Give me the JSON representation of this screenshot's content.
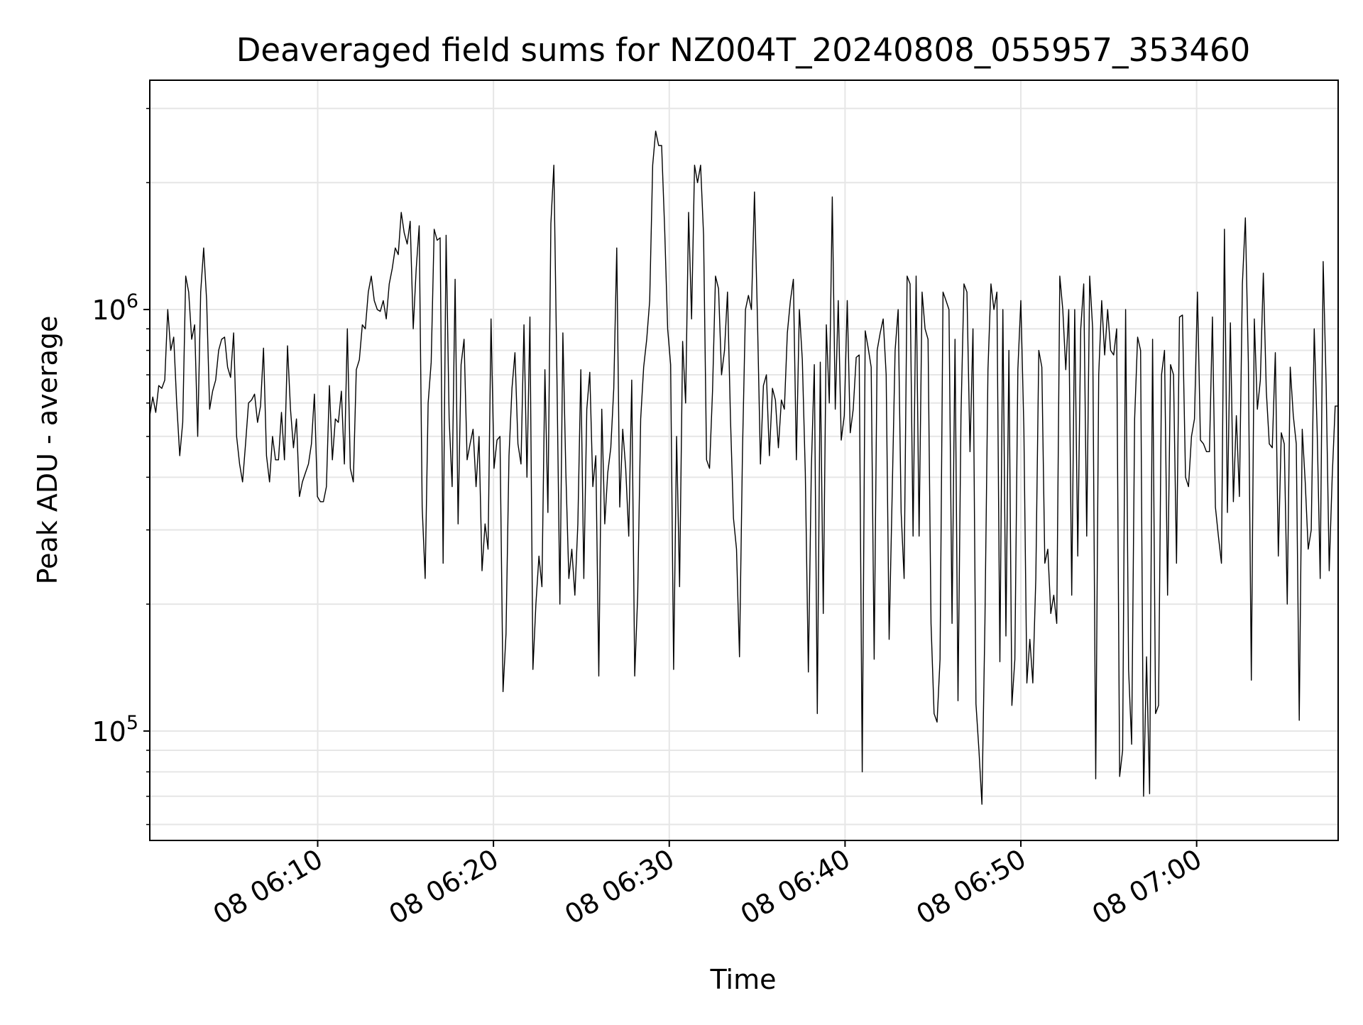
{
  "chart_data": {
    "type": "line",
    "title": "Deaveraged field sums for NZ004T_20240808_055957_353460",
    "xlabel": "Time",
    "ylabel": "Peak ADU - average",
    "yscale": "log",
    "ylim": [
      55000,
      3500000
    ],
    "xlim": [
      "2024-08-08 06:00:27",
      "2024-08-08 07:08:03"
    ],
    "xticks": [
      "2024-08-08 06:10:00",
      "2024-08-08 06:20:00",
      "2024-08-08 06:30:00",
      "2024-08-08 06:40:00",
      "2024-08-08 06:50:00",
      "2024-08-08 07:00:00"
    ],
    "xtick_labels": [
      "08 06:10",
      "08 06:20",
      "08 06:30",
      "08 06:40",
      "08 06:50",
      "08 07:00"
    ],
    "yticks": [
      100000,
      1000000
    ],
    "ytick_labels": [
      {
        "base": "10",
        "exp": "5"
      },
      {
        "base": "10",
        "exp": "6"
      }
    ],
    "grid": true,
    "line_color": "#000000",
    "series": [
      {
        "start": "2024-08-08 06:00:27",
        "end": "2024-08-08 07:08:03",
        "values": [
          560000,
          620000,
          570000,
          660000,
          650000,
          680000,
          1000000,
          800000,
          860000,
          600000,
          450000,
          540000,
          1200000,
          1100000,
          850000,
          920000,
          500000,
          1100000,
          1400000,
          1050000,
          580000,
          640000,
          680000,
          800000,
          850000,
          860000,
          730000,
          690000,
          880000,
          500000,
          430000,
          390000,
          480000,
          600000,
          610000,
          630000,
          540000,
          590000,
          810000,
          450000,
          390000,
          500000,
          440000,
          440000,
          570000,
          440000,
          820000,
          580000,
          470000,
          550000,
          360000,
          390000,
          410000,
          430000,
          480000,
          630000,
          360000,
          350000,
          350000,
          380000,
          660000,
          440000,
          550000,
          540000,
          640000,
          430000,
          900000,
          420000,
          390000,
          720000,
          760000,
          920000,
          900000,
          1100000,
          1200000,
          1050000,
          1000000,
          990000,
          1050000,
          950000,
          1150000,
          1250000,
          1400000,
          1350000,
          1700000,
          1520000,
          1430000,
          1620000,
          900000,
          1250000,
          1580000,
          340000,
          230000,
          600000,
          750000,
          1550000,
          1460000,
          1480000,
          250000,
          1500000,
          550000,
          380000,
          1180000,
          310000,
          740000,
          850000,
          440000,
          480000,
          520000,
          380000,
          500000,
          240000,
          310000,
          270000,
          950000,
          420000,
          490000,
          500000,
          124000,
          170000,
          450000,
          650000,
          790000,
          480000,
          430000,
          920000,
          400000,
          960000,
          140000,
          200000,
          260000,
          220000,
          720000,
          330000,
          1600000,
          2200000,
          700000,
          200000,
          880000,
          410000,
          230000,
          270000,
          210000,
          310000,
          720000,
          230000,
          580000,
          710000,
          380000,
          450000,
          135000,
          580000,
          310000,
          410000,
          470000,
          650000,
          1400000,
          340000,
          520000,
          420000,
          290000,
          680000,
          135000,
          210000,
          550000,
          730000,
          850000,
          1050000,
          2200000,
          2650000,
          2450000,
          2450000,
          1550000,
          900000,
          740000,
          140000,
          500000,
          220000,
          840000,
          600000,
          1700000,
          950000,
          2200000,
          2000000,
          2200000,
          1500000,
          440000,
          420000,
          640000,
          1200000,
          1120000,
          700000,
          800000,
          1100000,
          550000,
          320000,
          270000,
          150000,
          460000,
          1000000,
          1080000,
          1000000,
          1900000,
          950000,
          430000,
          660000,
          700000,
          450000,
          650000,
          610000,
          470000,
          610000,
          580000,
          880000,
          1050000,
          1180000,
          440000,
          1000000,
          760000,
          410000,
          138000,
          420000,
          740000,
          110000,
          750000,
          190000,
          920000,
          600000,
          1850000,
          580000,
          1050000,
          490000,
          560000,
          1050000,
          510000,
          580000,
          770000,
          780000,
          80000,
          890000,
          810000,
          730000,
          148000,
          800000,
          880000,
          950000,
          700000,
          165000,
          360000,
          800000,
          1000000,
          330000,
          230000,
          1200000,
          1150000,
          290000,
          1200000,
          290000,
          1100000,
          900000,
          850000,
          180000,
          110000,
          105000,
          148000,
          1100000,
          1050000,
          1000000,
          180000,
          850000,
          118000,
          560000,
          1150000,
          1100000,
          460000,
          900000,
          116000,
          90000,
          67000,
          180000,
          720000,
          1150000,
          1000000,
          1100000,
          146000,
          1000000,
          168000,
          800000,
          115000,
          148000,
          720000,
          1050000,
          520000,
          130000,
          165000,
          130000,
          230000,
          800000,
          730000,
          250000,
          270000,
          190000,
          210000,
          180000,
          1200000,
          1000000,
          720000,
          1000000,
          210000,
          1000000,
          260000,
          900000,
          1150000,
          290000,
          1200000,
          900000,
          77000,
          700000,
          1050000,
          780000,
          1000000,
          800000,
          780000,
          900000,
          78000,
          90000,
          1000000,
          140000,
          93000,
          550000,
          860000,
          800000,
          70000,
          150000,
          71000,
          850000,
          110000,
          115000,
          700000,
          800000,
          210000,
          740000,
          700000,
          250000,
          960000,
          970000,
          400000,
          380000,
          500000,
          550000,
          1100000,
          490000,
          480000,
          460000,
          460000,
          960000,
          340000,
          290000,
          250000,
          1550000,
          330000,
          930000,
          350000,
          560000,
          360000,
          1150000,
          1650000,
          750000,
          132000,
          950000,
          580000,
          680000,
          1220000,
          640000,
          480000,
          470000,
          790000,
          260000,
          510000,
          480000,
          200000,
          730000,
          560000,
          480000,
          106000,
          520000,
          390000,
          270000,
          300000,
          900000,
          510000,
          230000,
          1300000,
          660000,
          240000,
          400000,
          590000,
          590000
        ]
      }
    ]
  }
}
